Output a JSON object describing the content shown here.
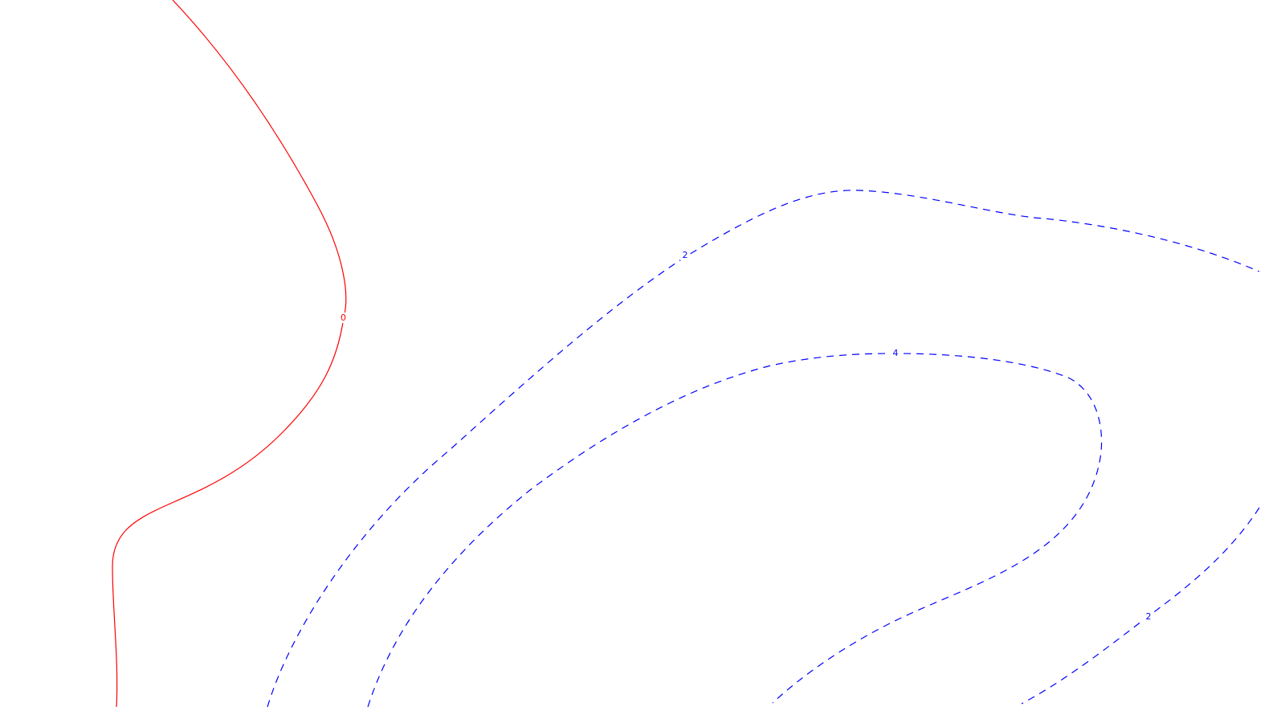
{
  "chart_data": {
    "type": "contour",
    "grid": false,
    "legend": "none",
    "positive_line_style": "dashed",
    "zero_line_style": "solid",
    "levels": [
      {
        "label": "0",
        "value": 0,
        "color": "#ff0000",
        "style": "solid"
      },
      {
        "label": "2",
        "value": 2,
        "color": "#0000ff",
        "style": "dashed"
      },
      {
        "label": "4",
        "value": 4,
        "color": "#0000ff",
        "style": "dashed"
      },
      {
        "label": "2",
        "value": 2,
        "color": "#0000ff",
        "style": "dashed"
      }
    ]
  }
}
